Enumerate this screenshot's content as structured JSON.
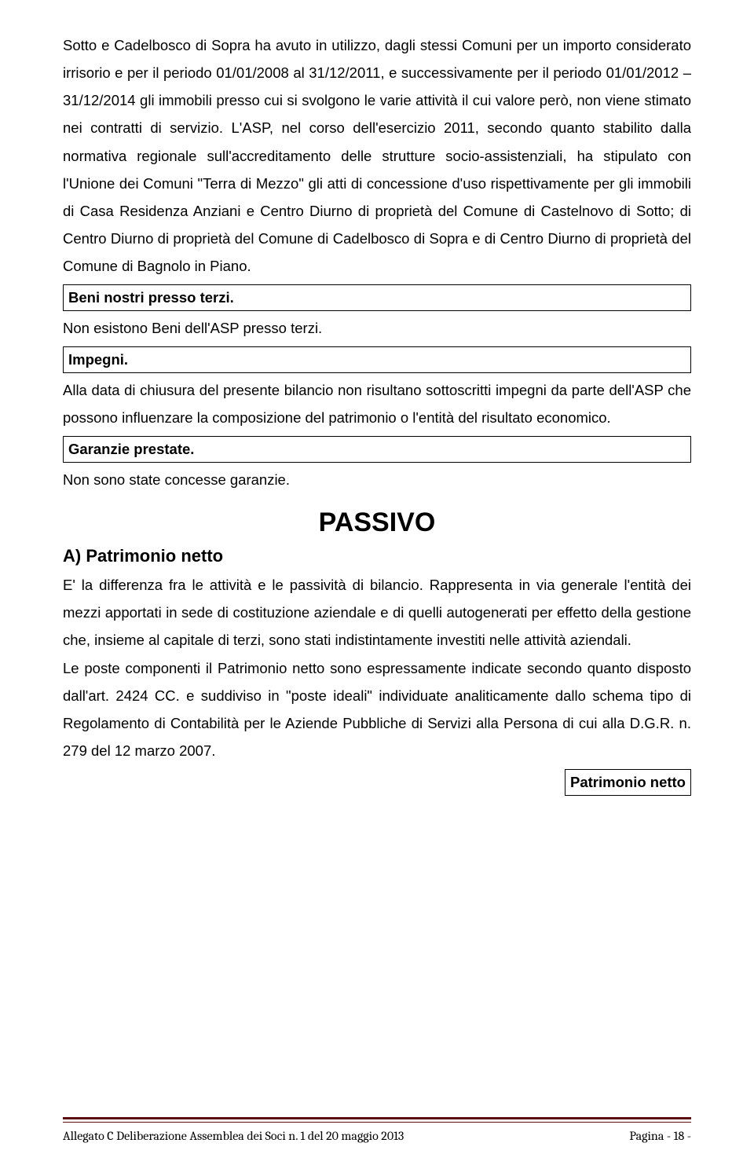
{
  "paragraph1": "Sotto e Cadelbosco di Sopra ha avuto in utilizzo, dagli stessi Comuni per un importo considerato irrisorio e per il periodo 01/01/2008 al 31/12/2011, e successivamente per il periodo 01/01/2012 – 31/12/2014 gli immobili presso cui si svolgono le varie attività il cui valore però, non viene stimato nei contratti di servizio. L'ASP, nel corso dell'esercizio 2011, secondo quanto stabilito dalla normativa regionale sull'accreditamento delle strutture socio-assistenziali, ha stipulato con l'Unione dei Comuni \"Terra di Mezzo\" gli atti di concessione d'uso rispettivamente per gli immobili di Casa Residenza Anziani e Centro Diurno di proprietà del Comune di Castelnovo di Sotto; di Centro Diurno di proprietà del Comune di Cadelbosco di Sopra e di Centro Diurno di proprietà del Comune di Bagnolo in Piano.",
  "box1_title": "Beni nostri presso terzi.",
  "box1_text": "Non esistono Beni dell'ASP presso terzi.",
  "box2_title": "Impegni.",
  "box2_text": "Alla data di chiusura del presente bilancio non risultano sottoscritti impegni da parte dell'ASP che possono influenzare la composizione del patrimonio o l'entità del risultato economico.",
  "box3_title": "Garanzie prestate.",
  "box3_text": "Non sono state concesse garanzie.",
  "passivo_title": "PASSIVO",
  "section_a_title": "A) Patrimonio netto",
  "section_a_text": "E' la differenza fra le attività e le passività di bilancio. Rappresenta in via generale l'entità dei mezzi apportati in sede di costituzione aziendale e di quelli autogenerati per effetto della gestione che, insieme al capitale di terzi, sono stati indistintamente investiti nelle attività aziendali.",
  "section_a_text2": "Le poste componenti il Patrimonio netto sono espressamente indicate secondo quanto disposto dall'art. 2424  CC. e suddiviso in \"poste ideali\" individuate analiticamente dallo schema tipo di Regolamento di Contabilità per le Aziende Pubbliche di Servizi alla Persona di cui alla D.G.R. n. 279 del 12 marzo 2007.",
  "box4_title": "Patrimonio netto",
  "footer_left": "Allegato C Deliberazione Assemblea dei Soci n. 1 del 20 maggio 2013",
  "footer_right": "Pagina - 18 -"
}
